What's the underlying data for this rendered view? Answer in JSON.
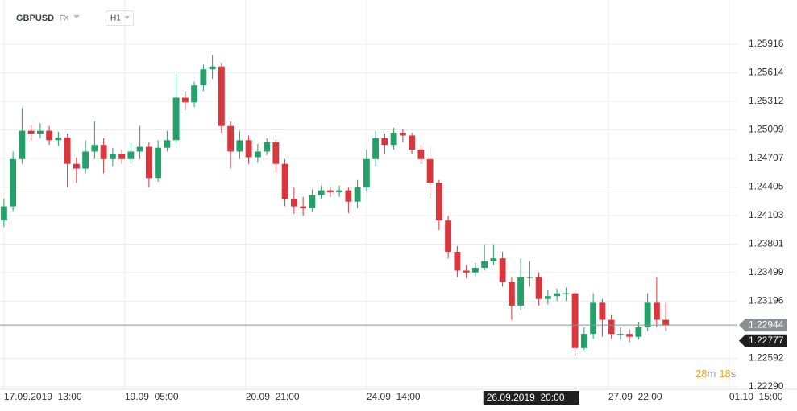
{
  "chart_data": {
    "type": "candlestick",
    "symbol": "GBPUSD",
    "market": "FX",
    "timeframe": "H1",
    "up_color": "#26a06b",
    "down_color": "#d9363e",
    "grid": true,
    "x": [
      0,
      3,
      6,
      9,
      12,
      15,
      18,
      21,
      24,
      27,
      30,
      33,
      36,
      39,
      42,
      45,
      48,
      51,
      54,
      57,
      60,
      63,
      66,
      69,
      72,
      75,
      78,
      81,
      84,
      87,
      90,
      93,
      96,
      99,
      102,
      105,
      108,
      111,
      114,
      117,
      120,
      123,
      126,
      129,
      132,
      135,
      138,
      141,
      144,
      147,
      150,
      153,
      156,
      159,
      162,
      165,
      168,
      171,
      174,
      177,
      180,
      183,
      186,
      189,
      192,
      195,
      198,
      201,
      204,
      207,
      210,
      213,
      216,
      219
    ],
    "open": [
      1.2405,
      1.242,
      1.247,
      1.25,
      1.2497,
      1.25,
      1.249,
      1.2493,
      1.2465,
      1.246,
      1.2478,
      1.2485,
      1.247,
      1.2475,
      1.247,
      1.2478,
      1.2483,
      1.245,
      1.2482,
      1.249,
      1.2535,
      1.253,
      1.2548,
      1.2565,
      1.2568,
      1.2505,
      1.2478,
      1.249,
      1.2472,
      1.2478,
      1.2488,
      1.2465,
      1.2428,
      1.242,
      1.2418,
      1.2432,
      1.2437,
      1.2435,
      1.2437,
      1.2425,
      1.244,
      1.247,
      1.2492,
      1.2485,
      1.2498,
      1.2495,
      1.248,
      1.247,
      1.2445,
      1.2405,
      1.2372,
      1.2352,
      1.235,
      1.2355,
      1.2362,
      1.2365,
      1.234,
      1.2315,
      1.2345,
      1.2345,
      1.2322,
      1.2325,
      1.2328,
      1.2328,
      1.227,
      1.2285,
      1.2318,
      1.23,
      1.2285,
      1.2285,
      1.2282,
      1.2292,
      1.2318,
      1.23
    ],
    "high": [
      1.2428,
      1.2478,
      1.2524,
      1.2506,
      1.2508,
      1.2505,
      1.2499,
      1.2497,
      1.2472,
      1.249,
      1.251,
      1.2492,
      1.2482,
      1.248,
      1.2488,
      1.2505,
      1.2488,
      1.249,
      1.25,
      1.256,
      1.2542,
      1.2552,
      1.257,
      1.258,
      1.2572,
      1.251,
      1.25,
      1.2495,
      1.2486,
      1.2492,
      1.2491,
      1.247,
      1.244,
      1.243,
      1.2438,
      1.2442,
      1.2441,
      1.2442,
      1.244,
      1.2448,
      1.248,
      1.25,
      1.2497,
      1.2503,
      1.2502,
      1.2498,
      1.2485,
      1.2482,
      1.2448,
      1.241,
      1.2378,
      1.2358,
      1.236,
      1.238,
      1.238,
      1.2372,
      1.2345,
      1.2365,
      1.2362,
      1.235,
      1.2332,
      1.2333,
      1.2334,
      1.2332,
      1.2292,
      1.2328,
      1.2322,
      1.2305,
      1.2292,
      1.229,
      1.2298,
      1.2328,
      1.2345,
      1.2318
    ],
    "low": [
      1.2398,
      1.2415,
      1.2465,
      1.249,
      1.2492,
      1.2485,
      1.2484,
      1.244,
      1.2445,
      1.2455,
      1.247,
      1.2455,
      1.2462,
      1.2465,
      1.2465,
      1.247,
      1.244,
      1.2446,
      1.2478,
      1.2486,
      1.2522,
      1.2525,
      1.2542,
      1.2555,
      1.2498,
      1.246,
      1.247,
      1.2465,
      1.2466,
      1.2474,
      1.2455,
      1.242,
      1.2412,
      1.241,
      1.2414,
      1.2428,
      1.243,
      1.243,
      1.2413,
      1.2418,
      1.2436,
      1.2462,
      1.2475,
      1.248,
      1.2488,
      1.2475,
      1.2465,
      1.2428,
      1.2395,
      1.2365,
      1.2345,
      1.2344,
      1.2346,
      1.2352,
      1.2358,
      1.2335,
      1.23,
      1.231,
      1.2335,
      1.2315,
      1.2316,
      1.232,
      1.232,
      1.2262,
      1.2268,
      1.228,
      1.2282,
      1.228,
      1.2279,
      1.2276,
      1.2279,
      1.2288,
      1.2292,
      1.2288
    ],
    "close": [
      1.242,
      1.247,
      1.25,
      1.2497,
      1.25,
      1.249,
      1.2493,
      1.2465,
      1.246,
      1.2478,
      1.2485,
      1.247,
      1.2475,
      1.247,
      1.2478,
      1.2483,
      1.245,
      1.2482,
      1.249,
      1.2535,
      1.253,
      1.2548,
      1.2565,
      1.2568,
      1.2505,
      1.2478,
      1.249,
      1.2472,
      1.2478,
      1.2488,
      1.2465,
      1.2428,
      1.242,
      1.2418,
      1.2432,
      1.2437,
      1.2435,
      1.2437,
      1.2425,
      1.244,
      1.247,
      1.2492,
      1.2485,
      1.2498,
      1.2495,
      1.248,
      1.247,
      1.2445,
      1.2405,
      1.2372,
      1.2352,
      1.235,
      1.2355,
      1.2362,
      1.2365,
      1.234,
      1.2315,
      1.2345,
      1.2345,
      1.2322,
      1.2325,
      1.2328,
      1.2328,
      1.227,
      1.2285,
      1.2318,
      1.23,
      1.2285,
      1.2285,
      1.2282,
      1.2292,
      1.2318,
      1.23,
      1.2294
    ],
    "xlim": [
      -1.3,
      242.7
    ],
    "ylim": [
      1.22264,
      1.26384
    ],
    "xticks": [
      {
        "value": 0,
        "label": "17.09.2019  13:00"
      },
      {
        "value": 40,
        "label": "19.09  05:00"
      },
      {
        "value": 80,
        "label": "20.09  21:00"
      },
      {
        "value": 120,
        "label": "24.09  14:00"
      },
      {
        "value": 200,
        "label": "27.09  22:00"
      },
      {
        "value": 240,
        "label": "01.10  15:00"
      }
    ],
    "yticks": [
      1.25916,
      1.25614,
      1.25312,
      1.25009,
      1.24707,
      1.24405,
      1.24103,
      1.23801,
      1.23499,
      1.23196,
      1.22592,
      1.2229
    ],
    "yticks_labels": [
      "1.25916",
      "1.25614",
      "1.25312",
      "1.25009",
      "1.24707",
      "1.24405",
      "1.24103",
      "1.23801",
      "1.23499",
      "1.23196",
      "1.22592",
      "1.22290"
    ],
    "last_price": {
      "value": 1.22944,
      "label": "1.22944"
    },
    "crosshair": {
      "x": 160.5,
      "x_label": "26.09.2019  20:00",
      "y": 1.22777,
      "y_label": "1.22777"
    },
    "timer": {
      "minutes": 28,
      "minutes_unit": "m",
      "seconds": 18,
      "seconds_unit": "s"
    }
  }
}
